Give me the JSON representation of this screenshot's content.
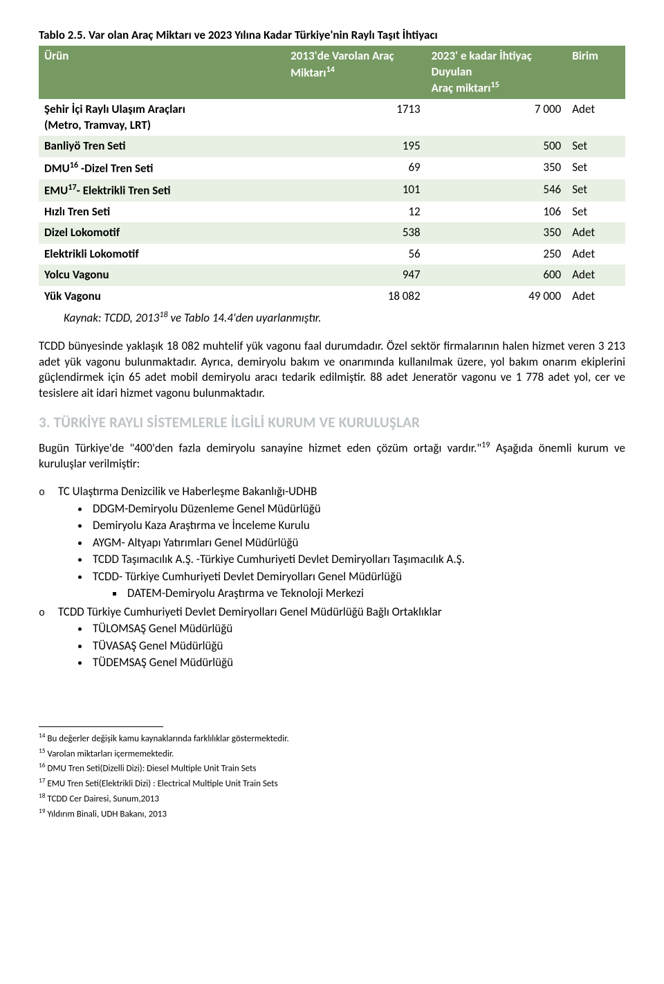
{
  "table": {
    "caption": "Tablo 2.5. Var olan Araç Miktarı ve 2023 Yılına Kadar Türkiye'nin Raylı Taşıt İhtiyacı",
    "header_bg": "#779a62",
    "row_alt_bg": "#e8f0e3",
    "headers": {
      "urun": "Ürün",
      "m1_a": "2013'de Varolan Araç",
      "m1_b": "Miktarı",
      "m1_sup": "14",
      "m2_a": "2023' e kadar İhtiyaç Duyulan",
      "m2_b": "Araç miktarı",
      "m2_sup": "15",
      "birim": "Birim"
    },
    "rows": [
      {
        "urun_a": "Şehir İçi Raylı Ulaşım Araçları",
        "urun_b": "(Metro, Tramvay, LRT)",
        "m1": "1713",
        "m2": "7 000",
        "birim": "Adet"
      },
      {
        "urun": "Banliyö Tren Seti",
        "m1": "195",
        "m2": "500",
        "birim": "Set"
      },
      {
        "urun_pre": "DMU",
        "urun_sup": "16",
        "urun_post": " -Dizel Tren Seti",
        "m1": "69",
        "m2": "350",
        "birim": "Set"
      },
      {
        "urun_pre": "EMU",
        "urun_sup": "17",
        "urun_post": "- Elektrikli Tren Seti",
        "m1": "101",
        "m2": "546",
        "birim": "Set"
      },
      {
        "urun": "Hızlı Tren Seti",
        "m1": "12",
        "m2": "106",
        "birim": "Set"
      },
      {
        "urun": "Dizel Lokomotif",
        "m1": "538",
        "m2": "350",
        "birim": "Adet"
      },
      {
        "urun": "Elektrikli Lokomotif",
        "m1": "56",
        "m2": "250",
        "birim": "Adet"
      },
      {
        "urun": "Yolcu Vagonu",
        "m1": "947",
        "m2": "600",
        "birim": "Adet"
      },
      {
        "urun": "Yük Vagonu",
        "m1": "18 082",
        "m2": "49 000",
        "birim": "Adet"
      }
    ],
    "kaynak_pre": "Kaynak: TCDD, 2013",
    "kaynak_sup": "18",
    "kaynak_post": " ve Tablo 14.4'den  uyarlanmıştır."
  },
  "para1": "TCDD bünyesinde yaklaşık 18 082 muhtelif yük vagonu faal durumdadır. Özel sektör firmalarının halen hizmet veren 3 213 adet yük vagonu bulunmaktadır. Ayrıca, demiryolu bakım ve onarımında kullanılmak üzere, yol bakım onarım ekiplerini güçlendirmek için 65 adet mobil demiryolu aracı tedarik edilmiştir. 88 adet Jeneratör vagonu ve 1 778 adet yol, cer ve tesislere ait idari hizmet vagonu bulunmaktadır.",
  "section_heading": "3. TÜRKİYE RAYLI SİSTEMLERLE İLGİLİ KURUM VE KURULUŞLAR",
  "para2_pre": "Bugün Türkiye'de \"400'den fazla demiryolu sanayine hizmet eden çözüm ortağı vardır.\"",
  "para2_sup": "19",
  "para2_post": " Aşağıda önemli kurum ve kuruluşlar verilmiştir:",
  "list": {
    "item1": "TC Ulaştırma Denizcilik ve Haberleşme Bakanlığı-UDHB",
    "sub1": [
      "DDGM-Demiryolu Düzenleme Genel Müdürlüğü",
      "Demiryolu Kaza Araştırma ve İnceleme Kurulu",
      "AYGM- Altyapı Yatırımları Genel Müdürlüğü",
      "TCDD Taşımacılık A.Ş. -Türkiye Cumhuriyeti Devlet Demiryolları Taşımacılık A.Ş.",
      "TCDD- Türkiye Cumhuriyeti Devlet Demiryolları Genel Müdürlüğü"
    ],
    "subsub1": "DATEM-Demiryolu Araştırma ve Teknoloji Merkezi",
    "item2": "TCDD Türkiye Cumhuriyeti Devlet Demiryolları Genel Müdürlüğü Bağlı Ortaklıklar",
    "sub2": [
      "TÜLOMSAŞ Genel Müdürlüğü",
      "TÜVASAŞ Genel Müdürlüğü",
      "TÜDEMSAŞ Genel Müdürlüğü"
    ]
  },
  "footnotes": {
    "f14_sup": "14",
    "f14": " Bu değerler değişik kamu kaynaklarında farklılıklar göstermektedir.",
    "f15_sup": "15",
    "f15": " Varolan miktarları içermemektedir.",
    "f16_sup": "16",
    "f16": " DMU Tren Seti(Dizelli Dizi): Diesel Multiple Unit Train Sets",
    "f17_sup": "17",
    "f17": " EMU Tren Seti(Elektrikli Dizi) : Electrical Multiple Unit Train Sets",
    "f18_sup": "18",
    "f18": " TCDD Cer Dairesi, Sunum,2013",
    "f19_sup": "19",
    "f19": " Yıldırım Binali, UDH Bakanı, 2013"
  }
}
